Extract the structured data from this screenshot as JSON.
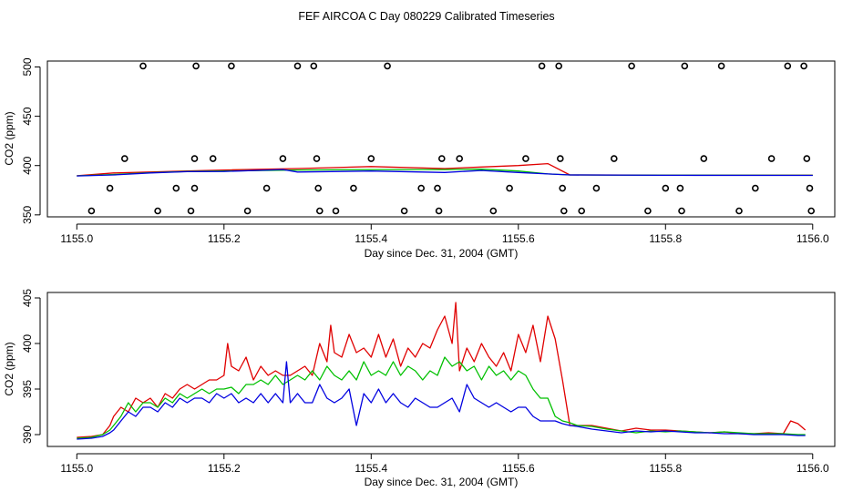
{
  "title": "FEF AIRCOA C  Day 080229  Calibrated Timeseries",
  "chart_data": [
    {
      "type": "line",
      "title": "",
      "xlabel": "Day since Dec. 31, 2004 (GMT)",
      "ylabel": "CO2 (ppm)",
      "xlim": [
        1154.96,
        1156.03
      ],
      "ylim": [
        348,
        506
      ],
      "xticks": [
        1155.0,
        1155.2,
        1155.4,
        1155.6,
        1155.8,
        1156.0
      ],
      "xtick_labels": [
        "1155.0",
        "1155.2",
        "1155.4",
        "1155.6",
        "1155.8",
        "1156.0"
      ],
      "yticks": [
        350,
        400,
        450,
        500
      ],
      "ytick_labels": [
        "350",
        "400",
        "450",
        "500"
      ],
      "colors": {
        "red": "#e00000",
        "green": "#00c000",
        "blue": "#0000e0",
        "points": "#000000"
      },
      "series": [
        {
          "name": "red",
          "x": [
            1155.0,
            1155.05,
            1155.1,
            1155.15,
            1155.2,
            1155.3,
            1155.4,
            1155.5,
            1155.55,
            1155.6,
            1155.64,
            1155.67,
            1155.8,
            1156.0
          ],
          "values": [
            389.7,
            392.5,
            393.5,
            394.5,
            395.5,
            397,
            399,
            397,
            398.5,
            400,
            402,
            390.5,
            390.3,
            390.2
          ]
        },
        {
          "name": "green",
          "x": [
            1155.0,
            1155.05,
            1155.1,
            1155.15,
            1155.2,
            1155.3,
            1155.4,
            1155.5,
            1155.55,
            1155.6,
            1155.64,
            1155.67,
            1155.8,
            1156.0
          ],
          "values": [
            389.6,
            391,
            392.8,
            394,
            394.5,
            395.5,
            396,
            396,
            396.3,
            394.5,
            391.5,
            390.5,
            390.2,
            390.1
          ]
        },
        {
          "name": "blue",
          "x": [
            1155.0,
            1155.05,
            1155.1,
            1155.15,
            1155.2,
            1155.28,
            1155.3,
            1155.4,
            1155.5,
            1155.55,
            1155.6,
            1155.64,
            1155.67,
            1155.8,
            1156.0
          ],
          "values": [
            389.5,
            390.5,
            392.5,
            393.8,
            394,
            396,
            393.5,
            394.5,
            393,
            395,
            393,
            391.5,
            390.5,
            390.1,
            390.0
          ]
        }
      ],
      "scatter": {
        "name": "points",
        "x": [
          1155.02,
          1155.045,
          1155.065,
          1155.09,
          1155.11,
          1155.135,
          1155.155,
          1155.16,
          1155.16,
          1155.162,
          1155.185,
          1155.21,
          1155.232,
          1155.258,
          1155.28,
          1155.3,
          1155.322,
          1155.326,
          1155.328,
          1155.33,
          1155.352,
          1155.376,
          1155.4,
          1155.422,
          1155.445,
          1155.468,
          1155.49,
          1155.492,
          1155.496,
          1155.52,
          1155.566,
          1155.588,
          1155.61,
          1155.632,
          1155.655,
          1155.657,
          1155.66,
          1155.662,
          1155.706,
          1155.686,
          1155.73,
          1155.754,
          1155.776,
          1155.8,
          1155.82,
          1155.822,
          1155.826,
          1155.852,
          1155.876,
          1155.9,
          1155.922,
          1155.944,
          1155.966,
          1155.988,
          1155.992,
          1155.996,
          1155.998
        ],
        "y": [
          354,
          377,
          407,
          501,
          354,
          377,
          354,
          377,
          407,
          501,
          407,
          501,
          354,
          377,
          407,
          501,
          501,
          407,
          377,
          354,
          354,
          377,
          407,
          501,
          354,
          377,
          377,
          354,
          407,
          407,
          354,
          377,
          407,
          501,
          501,
          407,
          377,
          354,
          377,
          354,
          407,
          501,
          354,
          377,
          377,
          354,
          501,
          407,
          501,
          354,
          377,
          407,
          501,
          501,
          407,
          377,
          354
        ]
      }
    },
    {
      "type": "line",
      "title": "",
      "xlabel": "Day since Dec. 31, 2004 (GMT)",
      "ylabel": "CO2 (ppm)",
      "xlim": [
        1154.96,
        1156.03
      ],
      "ylim": [
        388.7,
        405.6
      ],
      "xticks": [
        1155.0,
        1155.2,
        1155.4,
        1155.6,
        1155.8,
        1156.0
      ],
      "xtick_labels": [
        "1155.0",
        "1155.2",
        "1155.4",
        "1155.6",
        "1155.8",
        "1156.0"
      ],
      "yticks": [
        390,
        395,
        400,
        405
      ],
      "ytick_labels": [
        "390",
        "395",
        "400",
        "405"
      ],
      "colors": {
        "red": "#e00000",
        "green": "#00c000",
        "blue": "#0000e0"
      },
      "series": [
        {
          "name": "red",
          "x": [
            1155.0,
            1155.02,
            1155.035,
            1155.045,
            1155.05,
            1155.06,
            1155.07,
            1155.08,
            1155.09,
            1155.1,
            1155.11,
            1155.12,
            1155.13,
            1155.14,
            1155.15,
            1155.16,
            1155.17,
            1155.18,
            1155.19,
            1155.2,
            1155.205,
            1155.21,
            1155.22,
            1155.23,
            1155.24,
            1155.25,
            1155.26,
            1155.27,
            1155.28,
            1155.29,
            1155.3,
            1155.31,
            1155.32,
            1155.33,
            1155.34,
            1155.345,
            1155.35,
            1155.36,
            1155.37,
            1155.38,
            1155.39,
            1155.4,
            1155.41,
            1155.42,
            1155.43,
            1155.44,
            1155.45,
            1155.46,
            1155.47,
            1155.48,
            1155.49,
            1155.5,
            1155.51,
            1155.515,
            1155.52,
            1155.53,
            1155.54,
            1155.55,
            1155.56,
            1155.57,
            1155.58,
            1155.59,
            1155.6,
            1155.61,
            1155.62,
            1155.63,
            1155.64,
            1155.65,
            1155.66,
            1155.67,
            1155.68,
            1155.7,
            1155.72,
            1155.74,
            1155.76,
            1155.78,
            1155.8,
            1155.82,
            1155.84,
            1155.86,
            1155.88,
            1155.9,
            1155.92,
            1155.94,
            1155.96,
            1155.97,
            1155.98,
            1155.99
          ],
          "values": [
            389.7,
            389.8,
            390,
            391,
            392,
            393,
            392.5,
            394,
            393.5,
            394,
            393,
            394.5,
            394,
            395,
            395.5,
            395,
            395.5,
            396,
            396,
            396.5,
            400,
            397.5,
            397,
            398.5,
            396,
            397.5,
            396.5,
            397,
            396.5,
            396.5,
            397,
            397.5,
            396.5,
            400,
            398,
            402,
            399,
            398.5,
            401,
            399,
            399.5,
            398.5,
            401,
            398.5,
            400.5,
            397.5,
            399.5,
            398.5,
            400,
            399.5,
            401.5,
            403,
            400,
            404.5,
            397,
            399.5,
            398,
            400,
            398.5,
            397.5,
            399,
            397,
            401,
            399,
            402,
            398,
            403,
            400.5,
            396,
            391,
            391,
            391,
            390.7,
            390.4,
            390.7,
            390.5,
            390.5,
            390.4,
            390.3,
            390.2,
            390.3,
            390.1,
            390.1,
            390.2,
            390.1,
            391.5,
            391.2,
            390.5
          ]
        },
        {
          "name": "green",
          "x": [
            1155.0,
            1155.02,
            1155.035,
            1155.045,
            1155.05,
            1155.06,
            1155.07,
            1155.08,
            1155.09,
            1155.1,
            1155.11,
            1155.12,
            1155.13,
            1155.14,
            1155.15,
            1155.16,
            1155.17,
            1155.18,
            1155.19,
            1155.2,
            1155.21,
            1155.22,
            1155.23,
            1155.24,
            1155.25,
            1155.26,
            1155.27,
            1155.28,
            1155.29,
            1155.3,
            1155.31,
            1155.32,
            1155.33,
            1155.34,
            1155.35,
            1155.36,
            1155.37,
            1155.38,
            1155.39,
            1155.4,
            1155.41,
            1155.42,
            1155.43,
            1155.44,
            1155.45,
            1155.46,
            1155.47,
            1155.48,
            1155.49,
            1155.5,
            1155.51,
            1155.52,
            1155.53,
            1155.54,
            1155.55,
            1155.56,
            1155.57,
            1155.58,
            1155.59,
            1155.6,
            1155.61,
            1155.62,
            1155.63,
            1155.64,
            1155.65,
            1155.66,
            1155.67,
            1155.68,
            1155.7,
            1155.72,
            1155.74,
            1155.76,
            1155.78,
            1155.8,
            1155.82,
            1155.84,
            1155.86,
            1155.88,
            1155.9,
            1155.92,
            1155.94,
            1155.96,
            1155.98,
            1155.99
          ],
          "values": [
            389.6,
            389.7,
            390,
            390.5,
            391,
            392,
            393.5,
            392.5,
            393.5,
            393.5,
            393,
            394,
            393.5,
            394.5,
            394,
            394.5,
            395,
            394.5,
            395,
            395,
            395.2,
            394.5,
            395.5,
            395.5,
            396,
            395.5,
            396.5,
            395.5,
            396,
            396.5,
            396,
            397,
            396,
            397.5,
            396.5,
            396,
            397,
            396,
            398,
            396.5,
            397,
            396.5,
            398,
            396.5,
            397.5,
            397,
            396,
            397,
            396.5,
            398.5,
            397.5,
            398,
            397,
            397.5,
            396,
            397.5,
            396.5,
            397,
            396,
            397,
            396.5,
            395,
            394,
            394,
            392,
            391.5,
            391.3,
            391,
            390.9,
            390.6,
            390.4,
            390.2,
            390.4,
            390.3,
            390.4,
            390.3,
            390.2,
            390.3,
            390.2,
            390.1,
            390.1,
            390.1,
            390.0,
            390.0
          ]
        },
        {
          "name": "blue",
          "x": [
            1155.0,
            1155.02,
            1155.035,
            1155.045,
            1155.05,
            1155.06,
            1155.07,
            1155.08,
            1155.09,
            1155.1,
            1155.11,
            1155.12,
            1155.13,
            1155.14,
            1155.15,
            1155.16,
            1155.17,
            1155.18,
            1155.19,
            1155.2,
            1155.21,
            1155.22,
            1155.23,
            1155.24,
            1155.25,
            1155.26,
            1155.27,
            1155.28,
            1155.285,
            1155.29,
            1155.3,
            1155.31,
            1155.32,
            1155.33,
            1155.34,
            1155.35,
            1155.36,
            1155.37,
            1155.38,
            1155.39,
            1155.4,
            1155.41,
            1155.42,
            1155.43,
            1155.44,
            1155.45,
            1155.46,
            1155.47,
            1155.48,
            1155.49,
            1155.5,
            1155.51,
            1155.52,
            1155.53,
            1155.54,
            1155.55,
            1155.56,
            1155.57,
            1155.58,
            1155.59,
            1155.6,
            1155.61,
            1155.62,
            1155.63,
            1155.64,
            1155.65,
            1155.66,
            1155.67,
            1155.68,
            1155.7,
            1155.72,
            1155.74,
            1155.76,
            1155.78,
            1155.8,
            1155.82,
            1155.84,
            1155.86,
            1155.88,
            1155.9,
            1155.92,
            1155.94,
            1155.96,
            1155.98,
            1155.99
          ],
          "values": [
            389.5,
            389.6,
            389.8,
            390.2,
            390.5,
            391.5,
            392.5,
            392,
            393,
            393,
            392.5,
            393.5,
            393,
            394,
            393.5,
            394,
            394,
            393.5,
            394.5,
            394,
            394.5,
            393.5,
            394,
            393.5,
            394.5,
            393.5,
            394.5,
            393.5,
            398,
            393.5,
            394.5,
            393.5,
            393.5,
            395.5,
            394,
            393.5,
            394,
            395,
            391,
            394.5,
            393.5,
            395,
            393.5,
            394.5,
            393.5,
            393,
            394,
            393.5,
            393,
            393,
            393.5,
            394,
            392.5,
            395.5,
            394,
            393.5,
            393,
            393.5,
            393,
            392.5,
            393,
            393,
            392,
            391.5,
            391.5,
            391.5,
            391.2,
            391,
            390.9,
            390.6,
            390.4,
            390.2,
            390.4,
            390.3,
            390.4,
            390.3,
            390.2,
            390.2,
            390.1,
            390.1,
            390.0,
            390.0,
            390.0,
            389.9,
            389.9
          ]
        }
      ]
    }
  ]
}
